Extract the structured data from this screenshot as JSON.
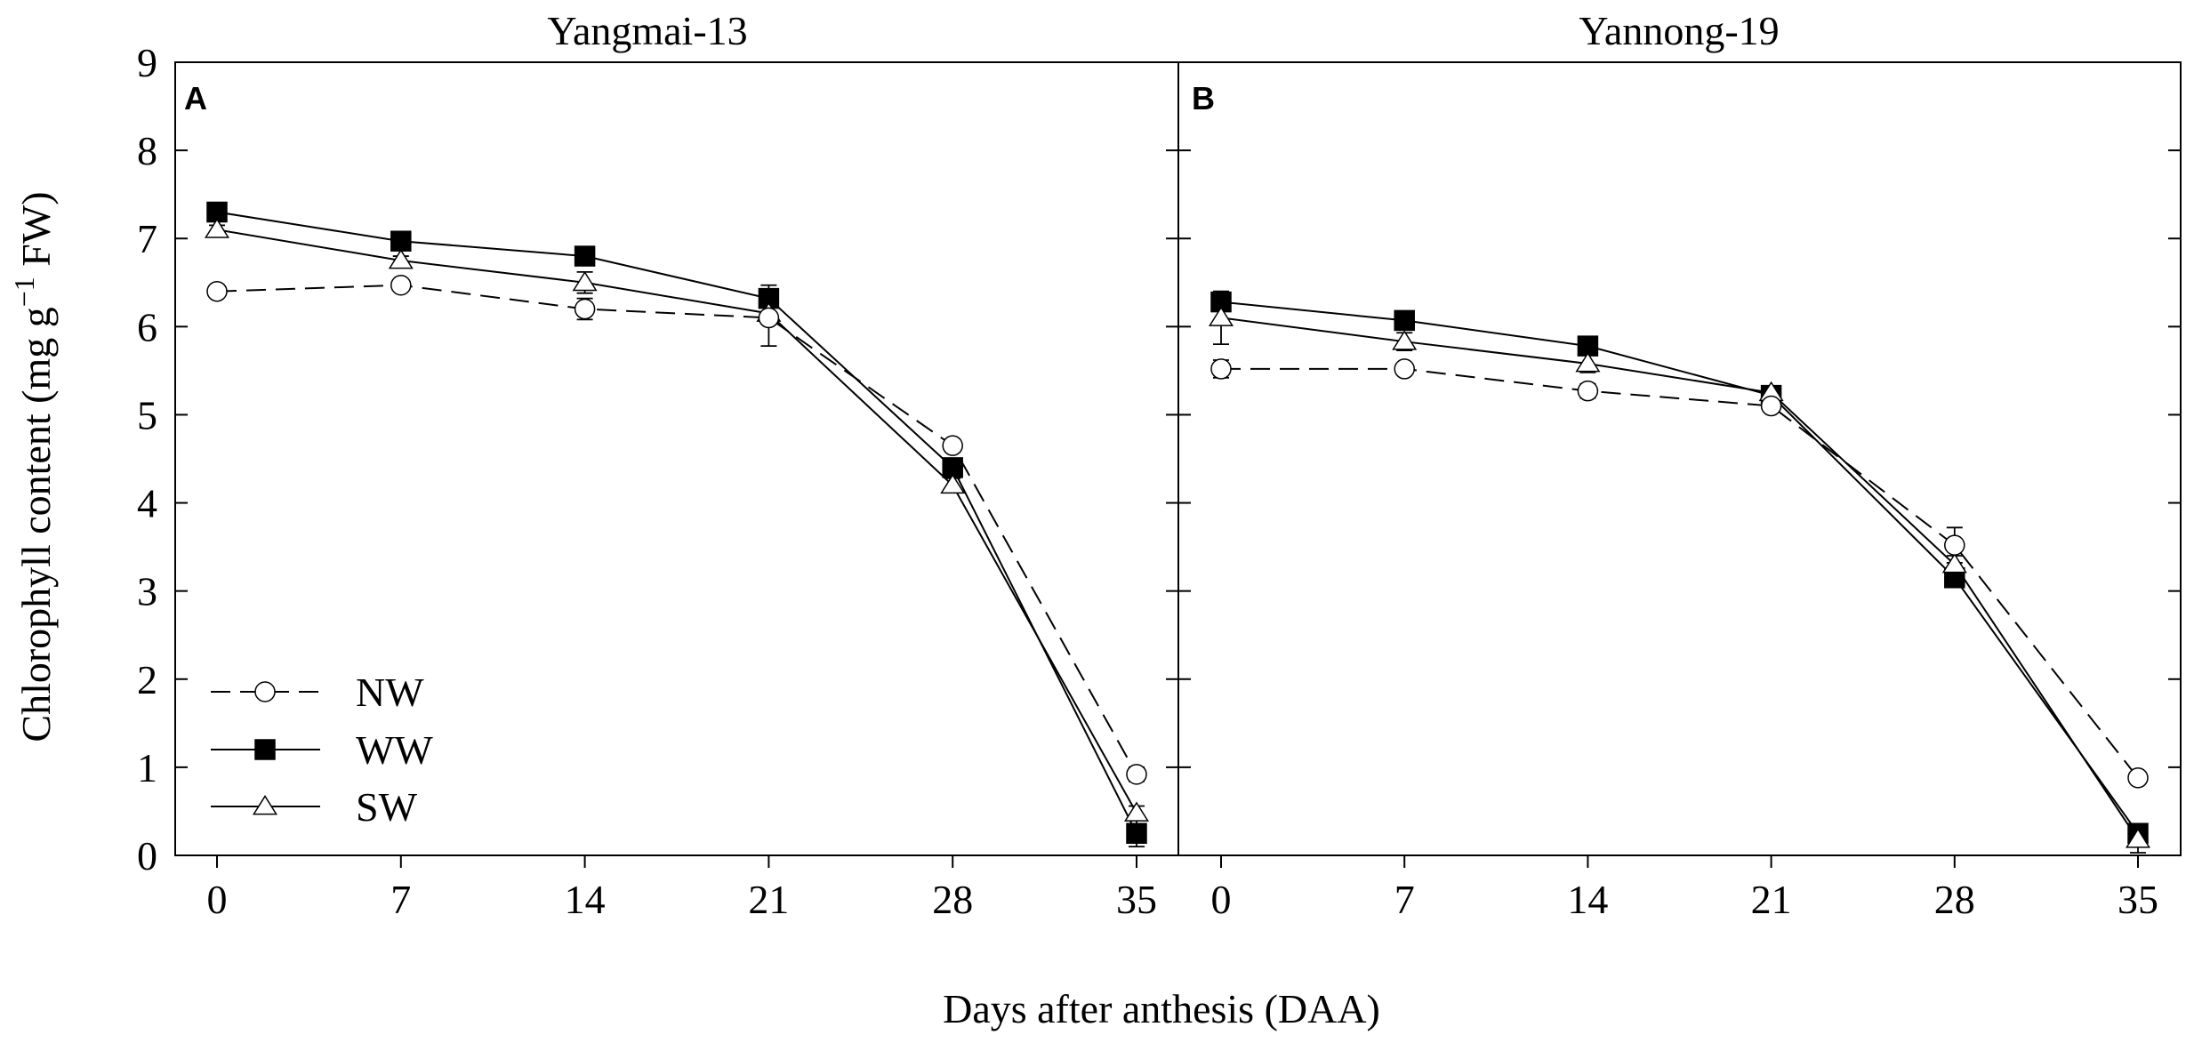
{
  "figure": {
    "ylabel_main": "Chlorophyll content (mg g",
    "ylabel_sup": "−1",
    "ylabel_tail": " FW)",
    "xlabel": "Days after anthesis (DAA)"
  },
  "chart_data": [
    {
      "type": "line",
      "panel": "A",
      "title": "Yangmai-13",
      "xlabel": "Days after anthesis (DAA)",
      "ylabel": "Chlorophyll content (mg g−1 FW)",
      "x": [
        0,
        7,
        14,
        21,
        28,
        35
      ],
      "x_tick_labels": [
        "0",
        "7",
        "14",
        "21",
        "28",
        "35"
      ],
      "ylim": [
        0,
        9
      ],
      "y_ticks": [
        0,
        1,
        2,
        3,
        4,
        5,
        6,
        7,
        8,
        9
      ],
      "y_tick_labels": [
        "0",
        "1",
        "2",
        "3",
        "4",
        "5",
        "6",
        "7",
        "8",
        "9"
      ],
      "legend": {
        "position": "bottom-left"
      },
      "series": [
        {
          "name": "NW",
          "marker": "open-circle",
          "line": "dashed",
          "values": [
            6.4,
            6.47,
            6.2,
            6.1,
            4.65,
            0.92
          ],
          "errors": [
            0.05,
            0.05,
            0.12,
            0.32,
            0.07,
            0.08
          ]
        },
        {
          "name": "WW",
          "marker": "filled-square",
          "line": "solid",
          "values": [
            7.3,
            6.97,
            6.8,
            6.32,
            4.4,
            0.25
          ],
          "errors": [
            0.05,
            0.05,
            0.05,
            0.15,
            0.08,
            0.15
          ]
        },
        {
          "name": "SW",
          "marker": "open-triangle",
          "line": "solid",
          "values": [
            7.1,
            6.75,
            6.5,
            6.15,
            4.2,
            0.48
          ],
          "errors": [
            0.05,
            0.05,
            0.12,
            0.12,
            0.08,
            0.08
          ]
        }
      ]
    },
    {
      "type": "line",
      "panel": "B",
      "title": "Yannong-19",
      "xlabel": "Days after anthesis (DAA)",
      "ylabel": "Chlorophyll content (mg g−1 FW)",
      "x": [
        0,
        7,
        14,
        21,
        28,
        35
      ],
      "x_tick_labels": [
        "0",
        "7",
        "14",
        "21",
        "28",
        "35"
      ],
      "ylim": [
        0,
        9
      ],
      "y_ticks": [
        0,
        1,
        2,
        3,
        4,
        5,
        6,
        7,
        8,
        9
      ],
      "y_tick_labels": [],
      "series": [
        {
          "name": "NW",
          "marker": "open-circle",
          "line": "dashed",
          "values": [
            5.52,
            5.52,
            5.27,
            5.1,
            3.52,
            0.88
          ],
          "errors": [
            0.1,
            0.05,
            0.08,
            0.05,
            0.2,
            0.05
          ]
        },
        {
          "name": "WW",
          "marker": "filled-square",
          "line": "solid",
          "values": [
            6.28,
            6.07,
            5.78,
            5.22,
            3.15,
            0.25
          ],
          "errors": [
            0.05,
            0.05,
            0.05,
            0.05,
            0.07,
            0.05
          ]
        },
        {
          "name": "SW",
          "marker": "open-triangle",
          "line": "solid",
          "values": [
            6.1,
            5.83,
            5.58,
            5.25,
            3.3,
            0.18
          ],
          "errors": [
            0.3,
            0.1,
            0.1,
            0.05,
            0.1,
            0.15
          ]
        }
      ]
    }
  ]
}
